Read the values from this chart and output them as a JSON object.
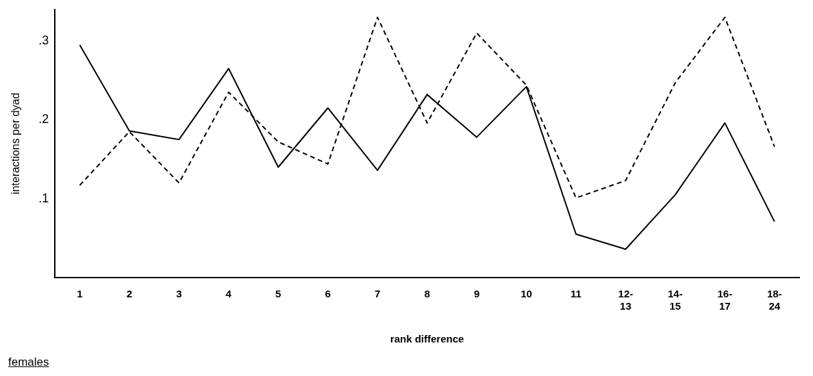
{
  "chart_data": {
    "type": "line",
    "xlabel": "rank difference",
    "ylabel": "interactions per dyad",
    "categories": [
      "1",
      "2",
      "3",
      "4",
      "5",
      "6",
      "7",
      "8",
      "9",
      "10",
      "11",
      "12-13",
      "14-15",
      "16-17",
      "18-24"
    ],
    "series": [
      {
        "color": "#000000",
        "line_style": "solid",
        "values": [
          0.295,
          0.186,
          0.175,
          0.265,
          0.14,
          0.215,
          0.136,
          0.232,
          0.178,
          0.242,
          0.055,
          0.036,
          0.105,
          0.196,
          0.071
        ]
      },
      {
        "color": "#000000",
        "line_style": "dashed",
        "values": [
          0.117,
          0.185,
          0.12,
          0.235,
          0.172,
          0.144,
          0.33,
          0.196,
          0.31,
          0.244,
          0.101,
          0.123,
          0.247,
          0.33,
          0.166
        ]
      }
    ],
    "ylim": [
      0,
      0.34
    ],
    "yticks": [
      {
        "value": 0.1,
        "label": ".1"
      },
      {
        "value": 0.2,
        "label": ".2"
      },
      {
        "value": 0.3,
        "label": ".3"
      }
    ],
    "grid": false,
    "legend": false,
    "marker": "none",
    "annotations": [
      "females"
    ]
  }
}
